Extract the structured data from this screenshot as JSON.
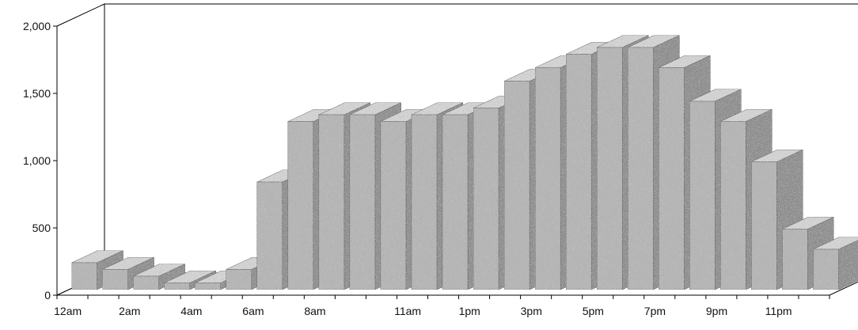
{
  "chart_data": {
    "type": "bar",
    "title": "",
    "xlabel": "",
    "ylabel": "",
    "ylim": [
      0,
      2000
    ],
    "grid": false,
    "style": "3d-columns-stippled",
    "colors": {
      "bar": "#b5b5b5",
      "bar_dark": "#8f8f8f",
      "axis": "#000000"
    },
    "y_ticks": [
      {
        "value": 0,
        "label": "0"
      },
      {
        "value": 500,
        "label": "500"
      },
      {
        "value": 1000,
        "label": "1,000"
      },
      {
        "value": 1500,
        "label": "1,500"
      },
      {
        "value": 2000,
        "label": "2,000"
      }
    ],
    "x_tick_labels": [
      {
        "index": 0,
        "label": "12am"
      },
      {
        "index": 2,
        "label": "2am"
      },
      {
        "index": 4,
        "label": "4am"
      },
      {
        "index": 6,
        "label": "6am"
      },
      {
        "index": 8,
        "label": "8am"
      },
      {
        "index": 11,
        "label": "11am"
      },
      {
        "index": 13,
        "label": "1pm"
      },
      {
        "index": 15,
        "label": "3pm"
      },
      {
        "index": 17,
        "label": "5pm"
      },
      {
        "index": 19,
        "label": "7pm"
      },
      {
        "index": 21,
        "label": "9pm"
      },
      {
        "index": 23,
        "label": "11pm"
      }
    ],
    "values": [
      200,
      150,
      100,
      50,
      50,
      150,
      800,
      1250,
      1300,
      1300,
      1250,
      1300,
      1300,
      1350,
      1550,
      1650,
      1750,
      1800,
      1800,
      1650,
      1400,
      1250,
      950,
      450,
      300
    ]
  }
}
